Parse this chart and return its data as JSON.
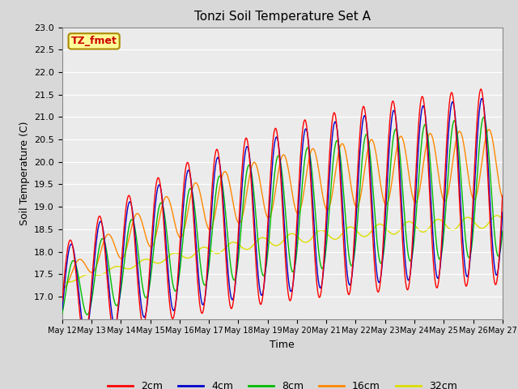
{
  "title": "Tonzi Soil Temperature Set A",
  "xlabel": "Time",
  "ylabel": "Soil Temperature (C)",
  "annotation": "TZ_fmet",
  "ylim": [
    16.5,
    23.0
  ],
  "yticks": [
    17.0,
    17.5,
    18.0,
    18.5,
    19.0,
    19.5,
    20.0,
    20.5,
    21.0,
    21.5,
    22.0,
    22.5,
    23.0
  ],
  "xtick_labels": [
    "May 12",
    "May 13",
    "May 14",
    "May 15",
    "May 16",
    "May 17",
    "May 18",
    "May 19",
    "May 20",
    "May 21",
    "May 22",
    "May 23",
    "May 24",
    "May 25",
    "May 26",
    "May 27"
  ],
  "colors": {
    "2cm": "#FF0000",
    "4cm": "#0000CC",
    "8cm": "#00BB00",
    "16cm": "#FF8800",
    "32cm": "#DDDD00"
  },
  "legend_labels": [
    "2cm",
    "4cm",
    "8cm",
    "16cm",
    "32cm"
  ],
  "background_color": "#D8D8D8",
  "plot_background": "#EBEBEB",
  "annotation_bg": "#FFFF99",
  "annotation_border": "#AA8800",
  "annotation_text_color": "#CC0000"
}
